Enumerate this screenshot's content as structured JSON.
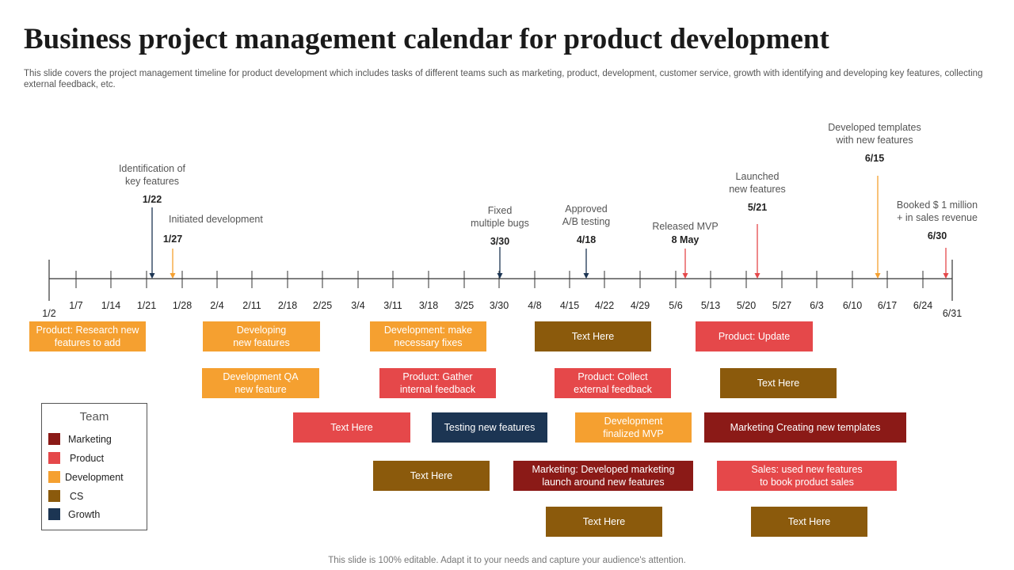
{
  "title": "Business project management calendar for product development",
  "subtitle": "This slide covers the project management timeline for product development which includes tasks of different teams such as marketing, product, development, customer service, growth with identifying and developing key features, collecting external feedback, etc.",
  "footer": "This slide is 100% editable. Adapt it to your needs and capture your audience's attention.",
  "colors": {
    "marketing": "#8B1A17",
    "product": "#E5484A",
    "development": "#F5A030",
    "cs": "#8B5A0C",
    "growth": "#1C3553",
    "axis": "#333333"
  },
  "timeline": {
    "ticks": [
      "1/2",
      "1/7",
      "1/14",
      "1/21",
      "1/28",
      "2/4",
      "2/11",
      "2/18",
      "2/25",
      "3/4",
      "3/11",
      "3/18",
      "3/25",
      "3/30",
      "4/8",
      "4/15",
      "4/22",
      "4/29",
      "5/6",
      "5/13",
      "5/20",
      "5/27",
      "6/3",
      "6/10",
      "6/17",
      "6/24",
      "6/31"
    ],
    "milestones": [
      {
        "text_lines": [
          "Identification  of",
          "key features"
        ],
        "date": "1/22",
        "team": "growth"
      },
      {
        "text": "Initiated development",
        "date": "1/27",
        "team": "development"
      },
      {
        "text_lines": [
          "Fixed",
          "multiple bugs"
        ],
        "date": "3/30",
        "team": "growth"
      },
      {
        "text_lines": [
          "Approved",
          "A/B testing"
        ],
        "date": "4/18",
        "team": "growth"
      },
      {
        "text": "Released MVP",
        "date": "8 May",
        "team": "product"
      },
      {
        "text_lines": [
          "Launched",
          "new features"
        ],
        "date": "5/21",
        "team": "product"
      },
      {
        "text_lines": [
          "Developed  templates",
          "with new features"
        ],
        "date": "6/15",
        "team": "development"
      },
      {
        "text_lines": [
          "Booked $ 1 million",
          "+ in sales revenue"
        ],
        "date": "6/30",
        "team": "product"
      }
    ]
  },
  "tasks": [
    {
      "label": "Product: Research new\nfeatures to add",
      "team": "development"
    },
    {
      "label": "Developing\nnew features",
      "team": "development"
    },
    {
      "label": "Development:  make\nnecessary fixes",
      "team": "development"
    },
    {
      "label": "Text Here",
      "team": "cs"
    },
    {
      "label": "Product: Update",
      "team": "product"
    },
    {
      "label": "Development  QA\nnew feature",
      "team": "development"
    },
    {
      "label": "Product: Gather\ninternal feedback",
      "team": "product"
    },
    {
      "label": "Product: Collect\nexternal feedback",
      "team": "product"
    },
    {
      "label": "Text Here",
      "team": "cs"
    },
    {
      "label": "Text Here",
      "team": "product"
    },
    {
      "label": "Testing new features",
      "team": "growth"
    },
    {
      "label": "Development\nfinalized MVP",
      "team": "development"
    },
    {
      "label": "Marketing Creating new templates",
      "team": "marketing"
    },
    {
      "label": "Text Here",
      "team": "cs"
    },
    {
      "label": "Marketing: Developed  marketing\nlaunch around new features",
      "team": "marketing"
    },
    {
      "label": "Sales: used new features\nto book  product sales",
      "team": "product"
    },
    {
      "label": "Text Here",
      "team": "cs"
    },
    {
      "label": "Text Here",
      "team": "cs"
    }
  ],
  "legend": {
    "title": "Team",
    "items": [
      {
        "label": "Marketing",
        "team": "marketing"
      },
      {
        "label": "Product",
        "team": "product"
      },
      {
        "label": "Development",
        "team": "development"
      },
      {
        "label": "CS",
        "team": "cs"
      },
      {
        "label": "Growth",
        "team": "growth"
      }
    ]
  }
}
